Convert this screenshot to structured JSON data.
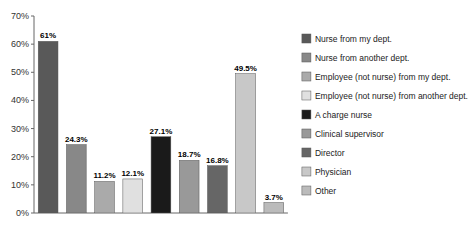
{
  "chart_data": {
    "type": "bar",
    "categories": [
      "Nurse from my dept.",
      "Nurse from another dept.",
      "Employee (not nurse) from my dept.",
      "Employee (not nurse) from another dept.",
      "A charge nurse",
      "Clinical supervisor",
      "Director",
      "Physician",
      "Other"
    ],
    "values": [
      61.0,
      24.3,
      11.2,
      12.1,
      27.1,
      18.7,
      16.8,
      49.5,
      3.7
    ],
    "value_labels": [
      "61%",
      "24.3%",
      "11.2%",
      "12.1%",
      "27.1%",
      "18.7%",
      "16.8%",
      "49.5%",
      "3.7%"
    ],
    "colors": [
      "#595959",
      "#888888",
      "#aaaaaa",
      "#e0e0e0",
      "#1a1a1a",
      "#999999",
      "#666666",
      "#c8c8c8",
      "#bbbbbb"
    ],
    "ylim": [
      0,
      70
    ],
    "yticks": [
      {
        "value": 0,
        "label": "0%"
      },
      {
        "value": 10,
        "label": "10%"
      },
      {
        "value": 20,
        "label": "20%"
      },
      {
        "value": 30,
        "label": "30%"
      },
      {
        "value": 40,
        "label": "40%"
      },
      {
        "value": 50,
        "label": "50%"
      },
      {
        "value": 60,
        "label": "60%"
      },
      {
        "value": 70,
        "label": "70%"
      }
    ],
    "data_labels": true,
    "tick_labels": "y",
    "legend": "right"
  }
}
